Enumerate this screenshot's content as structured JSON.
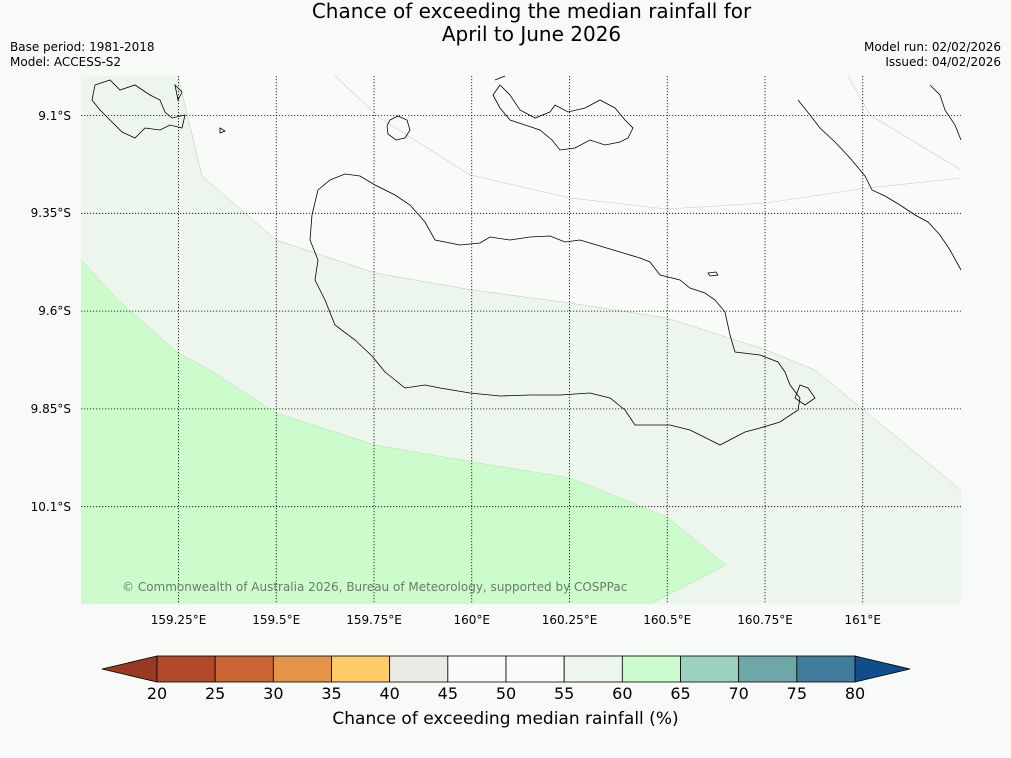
{
  "title": {
    "line1": "Chance of exceeding the median rainfall for",
    "line2": "April to June 2026"
  },
  "meta": {
    "base_period": "Base period: 1981-2018",
    "model": "Model: ACCESS-S2",
    "model_run": "Model run: 02/02/2026",
    "issued": "Issued: 04/02/2026"
  },
  "map": {
    "latitude_labels": [
      "9.1°S",
      "9.35°S",
      "9.6°S",
      "9.85°S",
      "10.1°S"
    ],
    "longitude_labels": [
      "159.25°E",
      "159.5°E",
      "159.75°E",
      "160°E",
      "160.25°E",
      "160.5°E",
      "160.75°E",
      "161°E"
    ],
    "copyright": "© Commonwealth of Australia 2026, Bureau of Meteorology, supported by COSPPac",
    "zone_colors": {
      "55-60": "#ecf6ec",
      "60-65": "#ccfccc",
      "50-55": "#f9fbf9"
    }
  },
  "colorbar": {
    "label": "Chance of exceeding median rainfall (%)",
    "ticks": [
      "20",
      "25",
      "30",
      "35",
      "40",
      "45",
      "50",
      "55",
      "60",
      "65",
      "70",
      "75",
      "80"
    ],
    "under_color": "#9a3a22",
    "over_color": "#104e8b",
    "colors": [
      "#b04a28",
      "#cc6535",
      "#e39447",
      "#fecb66",
      "#ebebe6",
      "#f9fbf9",
      "#f9fbf9",
      "#ecf6ec",
      "#ccfccc",
      "#9bd1bd",
      "#6fa6a8",
      "#427c9c"
    ]
  }
}
